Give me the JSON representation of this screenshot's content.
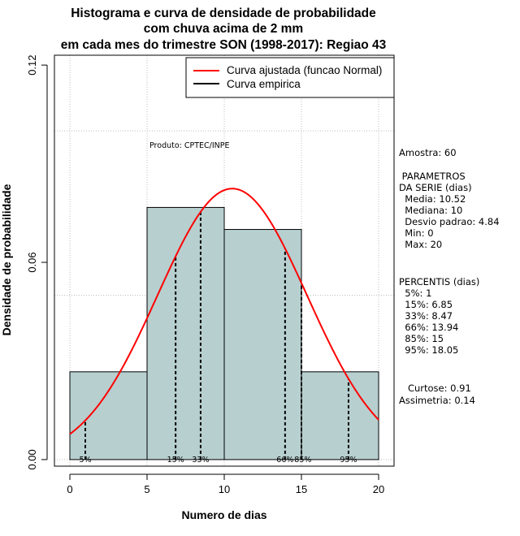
{
  "chart_data": {
    "type": "histogram",
    "title_lines": [
      "Histograma e curva de densidade de probabilidade",
      "com chuva acima de 2 mm",
      "em cada mes do trimestre SON (1998-2017): Regiao 43"
    ],
    "xlabel": "Numero de dias",
    "ylabel": "Densidade de probabilidade",
    "xlim": [
      -1,
      21
    ],
    "ylim": [
      -0.002,
      0.123
    ],
    "x_ticks": [
      0,
      5,
      10,
      15,
      20
    ],
    "y_ticks": [
      0.0,
      0.06,
      0.12
    ],
    "y_tick_labels": [
      "0.00",
      "0.06",
      "0.12"
    ],
    "grid_x": [
      0,
      5,
      10,
      15,
      20
    ],
    "grid_y": [
      0.0,
      0.05,
      0.1
    ],
    "bins": [
      {
        "from": 0,
        "to": 5,
        "density": 0.0267
      },
      {
        "from": 5,
        "to": 10,
        "density": 0.0767
      },
      {
        "from": 10,
        "to": 15,
        "density": 0.07
      },
      {
        "from": 15,
        "to": 20,
        "density": 0.0267
      }
    ],
    "bar_color": "#b7cfcf",
    "normal_fit": {
      "mean": 10.52,
      "sd": 4.84,
      "x_from": 0,
      "x_to": 20,
      "color": "#ff0000"
    },
    "percentile_lines": [
      {
        "x": 1,
        "label": "5%"
      },
      {
        "x": 6.85,
        "label": "15%"
      },
      {
        "x": 8.47,
        "label": "33%"
      },
      {
        "x": 13.94,
        "label": "66%"
      },
      {
        "x": 15,
        "label": "85%"
      },
      {
        "x": 18.05,
        "label": "95%"
      }
    ],
    "legend": {
      "position": "top-right",
      "entries": [
        {
          "label": "Curva ajustada (funcao Normal)",
          "color": "#ff0000"
        },
        {
          "label": "Curva empirica",
          "color": "#000000"
        }
      ]
    },
    "annotation": "Produto: CPTEC/INPE",
    "stats_lines": [
      "Amostra: 60",
      " PARAMETROS",
      "DA SERIE (dias)",
      "  Media: 10.52",
      "  Mediana: 10",
      "  Desvio padrao: 4.84",
      "  Min: 0",
      "  Max: 20",
      "PERCENTIS (dias)",
      "  5%: 1",
      "  15%: 6.85",
      "  33%: 8.47",
      "  66%: 13.94",
      "  85%: 15",
      "  95%: 18.05",
      "   Curtose: 0.91",
      "Assimetria: 0.14"
    ]
  }
}
